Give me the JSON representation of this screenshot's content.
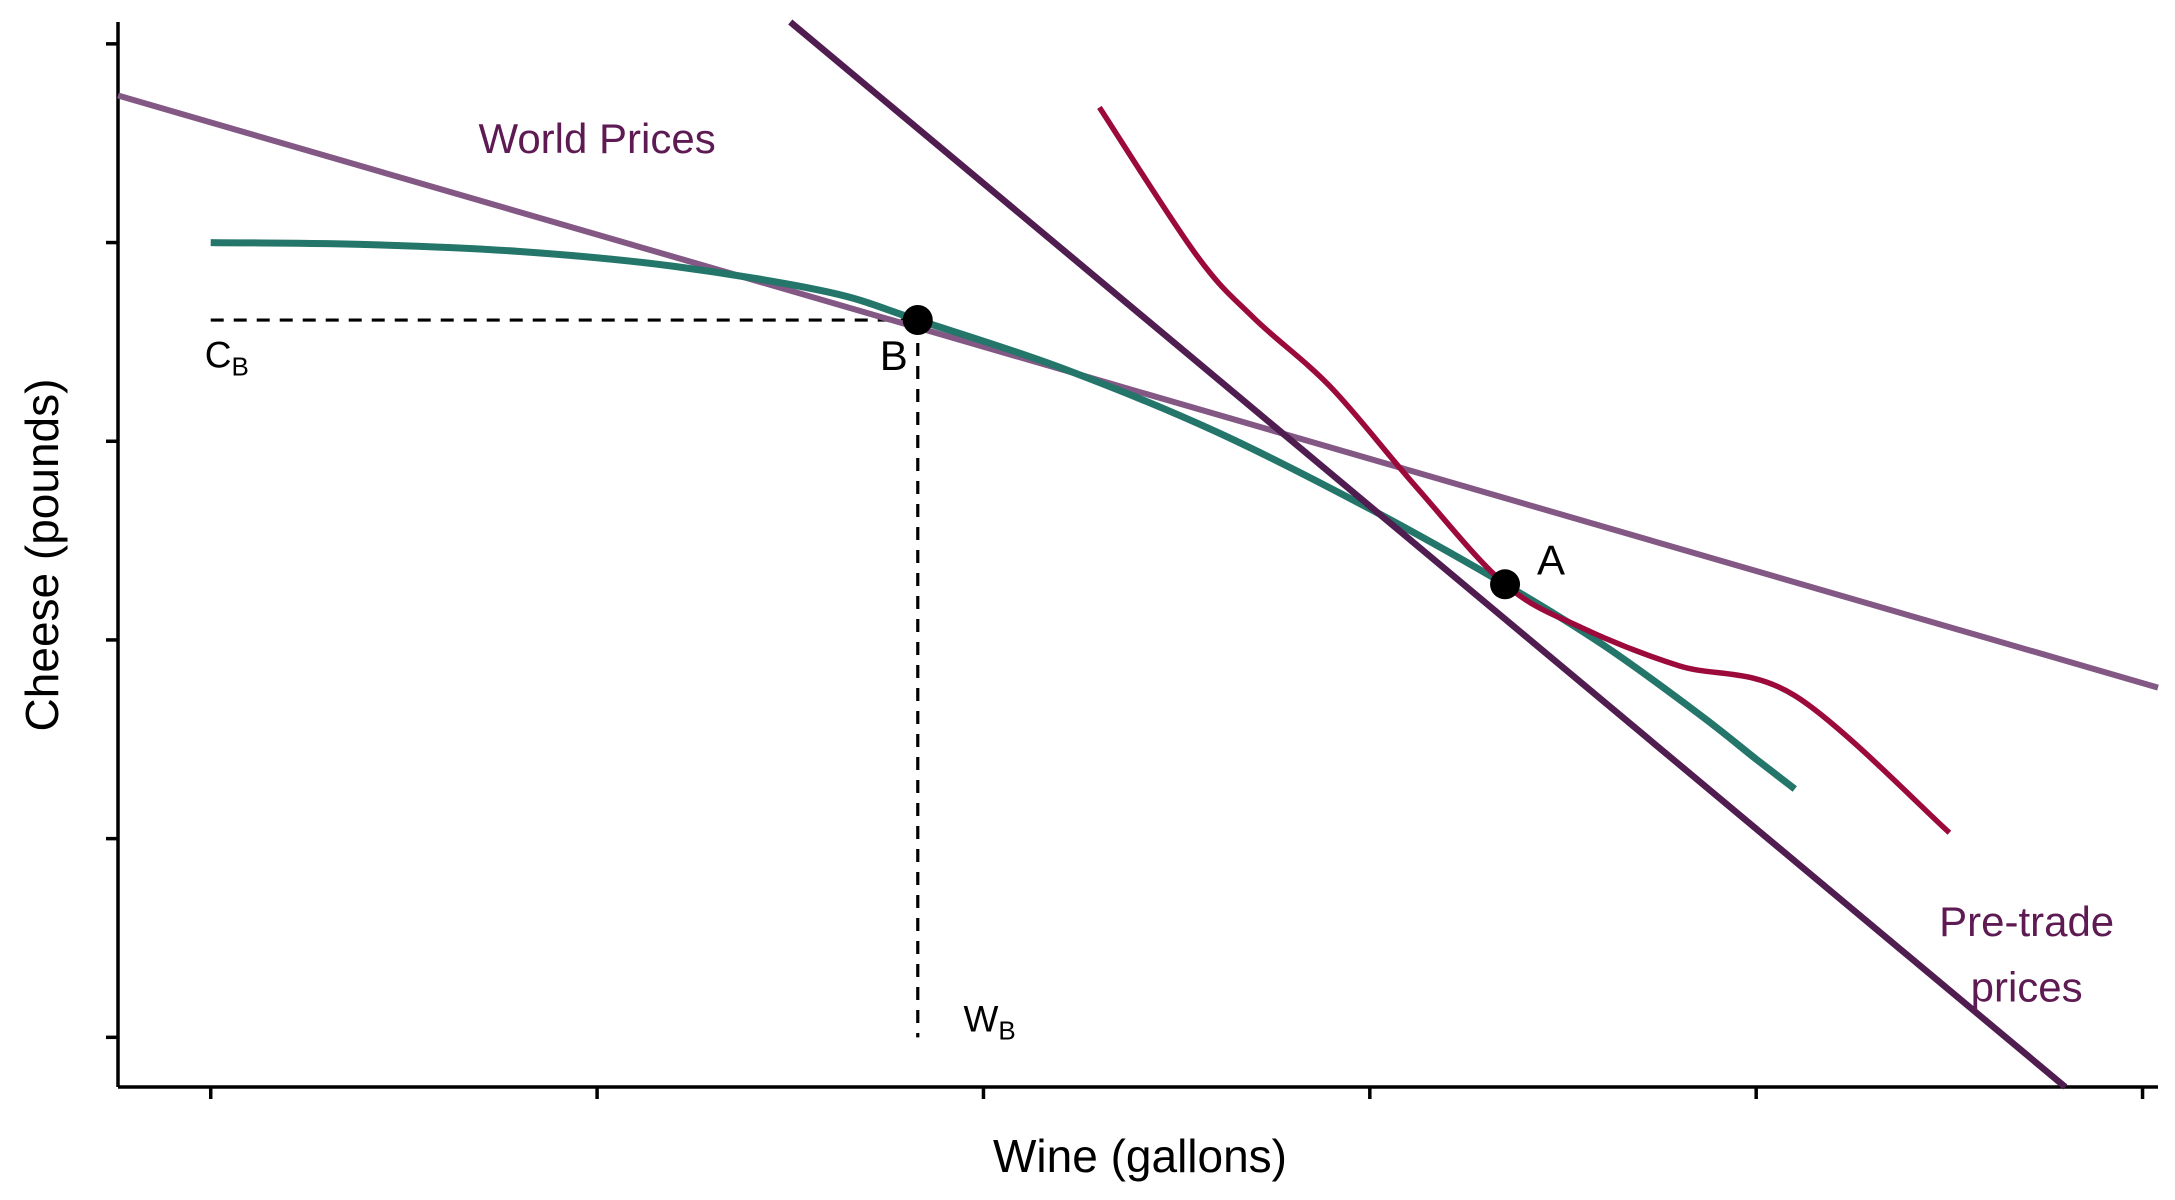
{
  "chart_data": {
    "type": "line",
    "xlabel": "Wine (gallons)",
    "ylabel": "Cheese (pounds)",
    "xlim": [
      -0.24,
      5.04
    ],
    "ylim": [
      0.0,
      5.36
    ],
    "x_ticks": [
      0,
      1,
      2,
      3,
      4,
      5
    ],
    "y_ticks": [
      0.25,
      1.25,
      2.25,
      3.25,
      4.25,
      5.25
    ],
    "tick_labels_shown": false,
    "grid": false,
    "legend": "none",
    "colors": {
      "ppf": "#237669",
      "indifference": "#9C0A3C",
      "world_price": "#835885",
      "pretrade_price": "#501D50",
      "label_text": "#5E1A52",
      "points": "#000000"
    },
    "series": [
      {
        "key": "ppf",
        "points": [
          [
            0.0,
            4.25
          ],
          [
            0.4,
            4.24
          ],
          [
            0.8,
            4.205
          ],
          [
            1.2,
            4.13
          ],
          [
            1.6,
            4.0
          ],
          [
            1.83,
            3.86
          ],
          [
            2.2,
            3.62
          ],
          [
            2.6,
            3.3
          ],
          [
            3.0,
            2.91
          ],
          [
            3.35,
            2.53
          ],
          [
            3.6,
            2.23
          ],
          [
            3.85,
            1.88
          ],
          [
            4.0,
            1.65
          ],
          [
            4.1,
            1.5
          ]
        ]
      },
      {
        "key": "indifference",
        "points": [
          [
            2.3,
            4.93
          ],
          [
            2.55,
            4.19
          ],
          [
            2.7,
            3.87
          ],
          [
            2.9,
            3.52
          ],
          [
            3.12,
            3.02
          ],
          [
            3.35,
            2.53
          ],
          [
            3.55,
            2.31
          ],
          [
            3.8,
            2.12
          ],
          [
            4.1,
            1.97
          ],
          [
            4.5,
            1.28
          ]
        ]
      },
      {
        "key": "world_price",
        "points": [
          [
            -0.24,
            4.99
          ],
          [
            5.04,
            2.01
          ]
        ]
      },
      {
        "key": "pretrade_price",
        "points": [
          [
            1.5,
            5.36
          ],
          [
            4.8,
            0.0
          ]
        ]
      }
    ],
    "guides": [
      {
        "from": [
          0.0,
          3.86
        ],
        "to": [
          1.83,
          3.86
        ]
      },
      {
        "from": [
          1.83,
          3.86
        ],
        "to": [
          1.83,
          0.25
        ]
      }
    ],
    "points": [
      {
        "label": "B",
        "x": 1.83,
        "y": 3.86
      },
      {
        "label": "A",
        "x": 3.35,
        "y": 2.53
      }
    ],
    "annotations": {
      "world_prices": {
        "text": "World Prices",
        "x": 1.0,
        "y": 4.7
      },
      "pretrade_line1": {
        "text": "Pre-trade",
        "x": 4.7,
        "y": 0.76
      },
      "pretrade_line2": {
        "text": "prices",
        "x": 4.7,
        "y": 0.43
      },
      "cb_main": {
        "text": "C",
        "x": 0.0,
        "y": 3.62
      },
      "cb_sub": {
        "text": "B"
      },
      "wb_main": {
        "text": "W",
        "x": 2.0,
        "y": 0.28
      },
      "wb_sub": {
        "text": "B"
      }
    }
  }
}
